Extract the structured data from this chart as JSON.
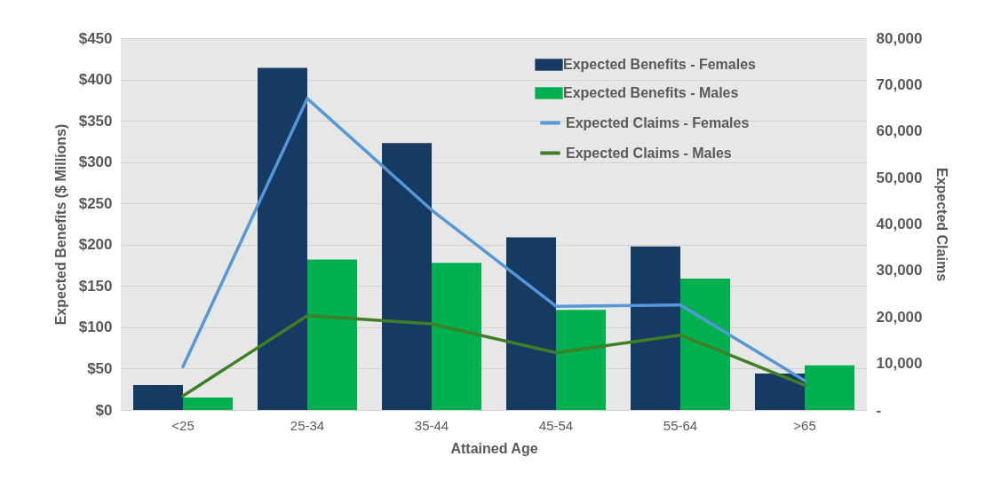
{
  "chart_data": {
    "type": "bar",
    "xlabel": "Attained Age",
    "ylabel": "Expected Benefits ($ Millions)",
    "y2label": "Expected Claims",
    "categories": [
      "<25",
      "25-34",
      "35-44",
      "45-54",
      "55-64",
      ">65"
    ],
    "series": [
      {
        "name": "Expected Benefits - Females",
        "color": "#173a63",
        "values": [
          30,
          414,
          323,
          209,
          198,
          44
        ]
      },
      {
        "name": "Expected Benefits - Males",
        "color": "#00b050",
        "values": [
          15,
          182,
          178,
          121,
          159,
          54
        ]
      },
      {
        "name": "Expected Claims - Females",
        "type": "line",
        "axis": "y2",
        "color": "#5597d8",
        "values": [
          9300,
          67000,
          43000,
          22300,
          22600,
          6300
        ]
      },
      {
        "name": "Expected Claims - Males",
        "type": "line",
        "axis": "y2",
        "color": "#3f7f25",
        "values": [
          3000,
          20300,
          18500,
          12300,
          16100,
          5300
        ]
      }
    ],
    "ylim": [
      0,
      450
    ],
    "yticks": [
      {
        "value": 0,
        "label": "$0"
      },
      {
        "value": 50,
        "label": "$50"
      },
      {
        "value": 100,
        "label": "$100"
      },
      {
        "value": 150,
        "label": "$150"
      },
      {
        "value": 200,
        "label": "$200"
      },
      {
        "value": 250,
        "label": "$250"
      },
      {
        "value": 300,
        "label": "$300"
      },
      {
        "value": 350,
        "label": "$350"
      },
      {
        "value": 400,
        "label": "$400"
      },
      {
        "value": 450,
        "label": "$450"
      }
    ],
    "y2lim": [
      0,
      80000
    ],
    "y2ticks": [
      {
        "value": 0,
        "label": "-"
      },
      {
        "value": 10000,
        "label": "10,000"
      },
      {
        "value": 20000,
        "label": "20,000"
      },
      {
        "value": 30000,
        "label": "30,000"
      },
      {
        "value": 40000,
        "label": "40,000"
      },
      {
        "value": 50000,
        "label": "50,000"
      },
      {
        "value": 60000,
        "label": "60,000"
      },
      {
        "value": 70000,
        "label": "70,000"
      },
      {
        "value": 80000,
        "label": "80,000"
      }
    ],
    "grid": "y",
    "legend": "top right",
    "marker": "none",
    "line_style": "solid"
  }
}
